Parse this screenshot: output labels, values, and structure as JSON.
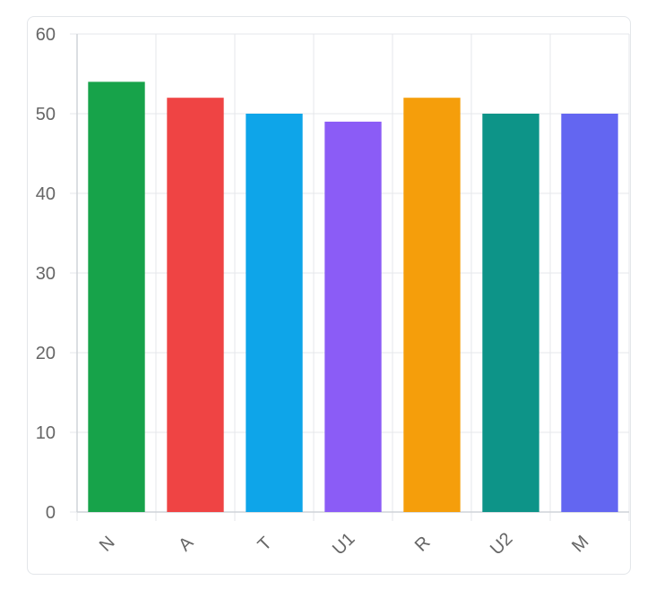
{
  "chart_data": {
    "type": "bar",
    "categories": [
      "N",
      "A",
      "T",
      "U1",
      "R",
      "U2",
      "M"
    ],
    "values": [
      54,
      52,
      50,
      49,
      52,
      50,
      50
    ],
    "colors": [
      "#17a34a",
      "#ef4444",
      "#0ea5e9",
      "#8b5cf6",
      "#f59e0b",
      "#0d9488",
      "#6366f1"
    ],
    "ylim": [
      0,
      60
    ],
    "yticks": [
      0,
      10,
      20,
      30,
      40,
      50,
      60
    ],
    "grid": true,
    "legend": "none",
    "title": "",
    "xlabel": "",
    "ylabel": ""
  }
}
